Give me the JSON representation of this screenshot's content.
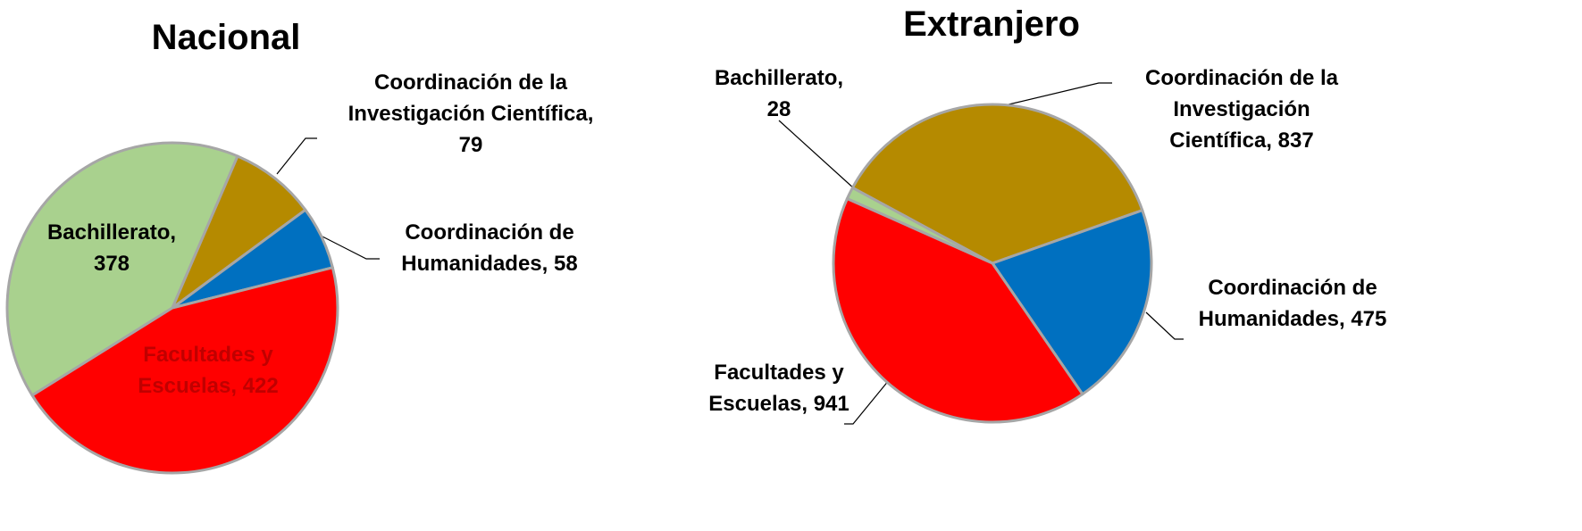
{
  "chart_data": [
    {
      "type": "pie",
      "title": "Nacional",
      "categories": [
        "Bachillerato,",
        "Coordinación de la Investigación Científica,",
        "Coordinación de Humanidades,",
        "Facultades y Escuelas,"
      ],
      "values": [
        378,
        79,
        58,
        422
      ],
      "colors": [
        "#a9d18e",
        "#b58a00",
        "#0070c0",
        "#ff0000"
      ]
    },
    {
      "type": "pie",
      "title": "Extranjero",
      "categories": [
        "Bachillerato,",
        "Coordinación de la Investigación Científica,",
        "Coordinación de Humanidades,",
        "Facultades y Escuelas,"
      ],
      "values": [
        28,
        837,
        475,
        941
      ],
      "colors": [
        "#a9d18e",
        "#b58a00",
        "#0070c0",
        "#ff0000"
      ]
    }
  ]
}
